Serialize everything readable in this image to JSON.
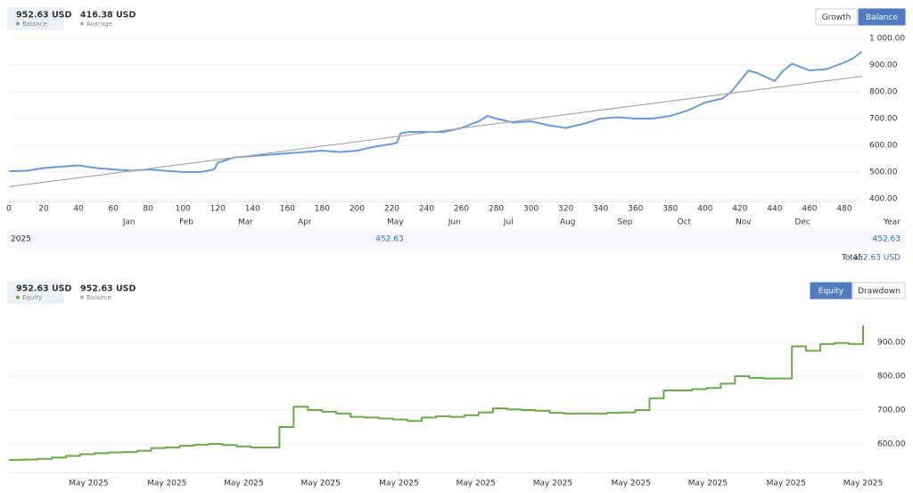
{
  "chart_data": [
    {
      "type": "line",
      "legend": [
        {
          "amount": "952.63 USD",
          "label": "Balance",
          "color": "#6a9bd8"
        },
        {
          "amount": "416.38 USD",
          "label": "Average",
          "color": "#aaaaaa"
        }
      ],
      "buttons": [
        "Growth",
        "Balance"
      ],
      "active_button": 1,
      "series": [
        {
          "color": "#6a9bd8",
          "x": [
            0,
            10,
            20,
            30,
            40,
            50,
            60,
            70,
            80,
            90,
            100,
            110,
            118,
            120,
            130,
            140,
            150,
            160,
            170,
            180,
            190,
            200,
            210,
            220,
            223,
            225,
            230,
            240,
            250,
            260,
            270,
            275,
            280,
            290,
            300,
            310,
            320,
            330,
            340,
            350,
            360,
            370,
            380,
            390,
            400,
            410,
            415,
            420,
            425,
            430,
            440,
            445,
            450,
            460,
            470,
            480,
            485,
            490
          ],
          "values": [
            503,
            505,
            515,
            520,
            525,
            515,
            510,
            505,
            510,
            505,
            500,
            500,
            510,
            535,
            555,
            560,
            565,
            570,
            575,
            580,
            575,
            580,
            595,
            605,
            610,
            645,
            650,
            650,
            650,
            665,
            690,
            710,
            700,
            685,
            690,
            675,
            665,
            680,
            700,
            705,
            700,
            700,
            710,
            730,
            760,
            775,
            800,
            840,
            880,
            870,
            840,
            880,
            905,
            880,
            885,
            910,
            925,
            950
          ]
        },
        {
          "color": "#aaaaaa",
          "x": [
            0,
            490
          ],
          "values": [
            445,
            858
          ]
        }
      ],
      "xlim": [
        0,
        490
      ],
      "xticks": [
        0,
        20,
        40,
        60,
        80,
        100,
        120,
        140,
        160,
        180,
        200,
        220,
        240,
        260,
        280,
        300,
        320,
        340,
        360,
        380,
        400,
        420,
        440,
        460,
        480
      ],
      "month_ticks": [
        {
          "value": 69,
          "label": "Jan"
        },
        {
          "value": 102,
          "label": "Feb"
        },
        {
          "value": 136,
          "label": "Mar"
        },
        {
          "value": 170,
          "label": "Apr"
        },
        {
          "value": 222,
          "label": "May"
        },
        {
          "value": 256,
          "label": "Jun"
        },
        {
          "value": 287,
          "label": "Jul"
        },
        {
          "value": 321,
          "label": "Aug"
        },
        {
          "value": 354,
          "label": "Sep"
        },
        {
          "value": 388,
          "label": "Oct"
        },
        {
          "value": 422,
          "label": "Nov"
        },
        {
          "value": 456,
          "label": "Dec"
        }
      ],
      "year_label": "Year",
      "ylim": [
        390,
        1010
      ],
      "yticks": [
        {
          "value": 400,
          "label": "400.00"
        },
        {
          "value": 500,
          "label": "500.00"
        },
        {
          "value": 600,
          "label": "600.00"
        },
        {
          "value": 700,
          "label": "700.00"
        },
        {
          "value": 800,
          "label": "800.00"
        },
        {
          "value": 900,
          "label": "900.00"
        },
        {
          "value": 1000,
          "label": "1 000.00"
        }
      ],
      "grid": true,
      "summary": {
        "year": "2025",
        "month_value": "452.63",
        "year_value": "452.63",
        "total_label": "Total:",
        "total": "452.63 USD"
      }
    },
    {
      "type": "step",
      "legend": [
        {
          "amount": "952.63 USD",
          "label": "Equity",
          "color": "#6aaa4a"
        },
        {
          "amount": "952.63 USD",
          "label": "Balance",
          "color": "#aaaaaa"
        }
      ],
      "buttons": [
        "Equity",
        "Drawdown"
      ],
      "active_button": 0,
      "series": [
        {
          "color": "#6aaa4a",
          "values": [
            553,
            554,
            556,
            560,
            565,
            570,
            573,
            575,
            576,
            580,
            588,
            590,
            595,
            598,
            600,
            597,
            593,
            590,
            590,
            650,
            710,
            700,
            695,
            690,
            680,
            678,
            675,
            672,
            668,
            678,
            682,
            680,
            685,
            693,
            705,
            702,
            700,
            698,
            692,
            690,
            690,
            690,
            692,
            693,
            700,
            735,
            758,
            758,
            762,
            765,
            778,
            800,
            795,
            793,
            793,
            888,
            875,
            895,
            898,
            895,
            950
          ]
        }
      ],
      "xlim": [
        0,
        60
      ],
      "xticks": [
        {
          "value": 5.6,
          "label": "May 2025"
        },
        {
          "value": 11.1,
          "label": "May 2025"
        },
        {
          "value": 16.5,
          "label": "May 2025"
        },
        {
          "value": 21.9,
          "label": "May 2025"
        },
        {
          "value": 27.4,
          "label": "May 2025"
        },
        {
          "value": 32.8,
          "label": "May 2025"
        },
        {
          "value": 38.2,
          "label": "May 2025"
        },
        {
          "value": 43.7,
          "label": "May 2025"
        },
        {
          "value": 49.1,
          "label": "May 2025"
        },
        {
          "value": 54.6,
          "label": "May 2025"
        },
        {
          "value": 60,
          "label": "May 2025"
        }
      ],
      "ylim": [
        516,
        963
      ],
      "yticks": [
        {
          "value": 600,
          "label": "600.00"
        },
        {
          "value": 700,
          "label": "700.00"
        },
        {
          "value": 800,
          "label": "800.00"
        },
        {
          "value": 900,
          "label": "900.00"
        }
      ],
      "grid": true
    }
  ]
}
